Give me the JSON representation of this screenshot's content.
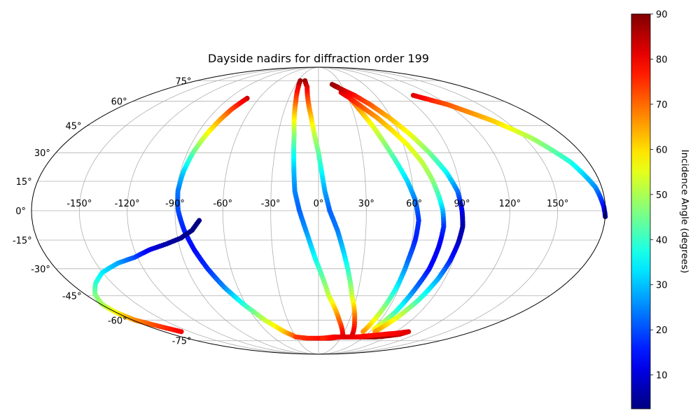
{
  "chart_data": {
    "type": "scatter",
    "projection": "mollweide",
    "title": "Dayside nadirs for diffraction order 199",
    "xlabel": "",
    "ylabel": "",
    "x_tick_labels": [
      "-150°",
      "-120°",
      "-90°",
      "-60°",
      "-30°",
      "0°",
      "30°",
      "60°",
      "90°",
      "120°",
      "150°"
    ],
    "x_ticks": [
      -150,
      -120,
      -90,
      -60,
      -30,
      0,
      30,
      60,
      90,
      120,
      150
    ],
    "y_tick_labels": [
      "-75°",
      "-60°",
      "-45°",
      "-30°",
      "-15°",
      "0°",
      "15°",
      "30°",
      "45°",
      "60°",
      "75°"
    ],
    "y_ticks": [
      -75,
      -60,
      -45,
      -30,
      -15,
      0,
      15,
      30,
      45,
      60,
      75
    ],
    "xlim": [
      -180,
      180
    ],
    "ylim": [
      -90,
      90
    ],
    "grid": true,
    "colorbar": {
      "label": "Incidence Angle (degrees)",
      "colormap": "jet",
      "range": [
        2.5,
        90
      ],
      "ticks": [
        10,
        20,
        30,
        40,
        50,
        60,
        70,
        80,
        90
      ],
      "tick_labels": [
        "10",
        "20",
        "30",
        "40",
        "50",
        "60",
        "70",
        "80",
        "90"
      ]
    },
    "series": [
      {
        "x_longitude_deg": [
          -72,
          -77,
          -80,
          -83,
          -86,
          -88,
          -89,
          -88,
          -85,
          -81,
          -76,
          -70,
          -62,
          -52,
          -40,
          -32
        ],
        "y_latitude_deg": [
          62,
          55,
          48,
          40,
          30,
          20,
          10,
          0,
          -10,
          -20,
          -30,
          -40,
          -50,
          -60,
          -68,
          -71
        ],
        "incidence_deg": [
          83,
          74,
          65,
          56,
          44,
          32,
          24,
          20,
          16,
          14,
          17,
          25,
          38,
          52,
          62,
          70
        ]
      },
      {
        "x_longitude_deg": [
          -160,
          -178,
          -180,
          -179,
          -172,
          -162,
          -150,
          -135,
          -122,
          -110,
          -98,
          -88,
          -80,
          -75
        ],
        "y_latitude_deg": [
          -68,
          -60,
          -55,
          -50,
          -44,
          -38,
          -32,
          -27,
          -24,
          -20,
          -17,
          -14,
          -10,
          -5
        ],
        "incidence_deg": [
          80,
          68,
          58,
          50,
          46,
          40,
          34,
          28,
          20,
          12,
          6,
          4,
          3,
          3
        ]
      },
      {
        "x_longitude_deg": [
          -27,
          -25,
          -22,
          -20,
          -18,
          -17,
          -16,
          -15,
          -12,
          -8,
          -2,
          8,
          20,
          30
        ],
        "y_latitude_deg": [
          75,
          70,
          60,
          50,
          40,
          30,
          20,
          10,
          0,
          -10,
          -25,
          -45,
          -60,
          -70
        ],
        "incidence_deg": [
          88,
          82,
          72,
          60,
          48,
          38,
          30,
          25,
          22,
          26,
          36,
          52,
          70,
          80
        ]
      },
      {
        "x_longitude_deg": [
          -20,
          -14,
          -10,
          -6,
          -3,
          0,
          2,
          4,
          7,
          12,
          18,
          26,
          35,
          42
        ],
        "y_latitude_deg": [
          75,
          70,
          60,
          50,
          40,
          30,
          20,
          10,
          0,
          -10,
          -25,
          -45,
          -60,
          -70
        ],
        "incidence_deg": [
          88,
          82,
          72,
          62,
          52,
          44,
          36,
          28,
          22,
          24,
          34,
          52,
          72,
          82
        ]
      },
      {
        "x_longitude_deg": [
          18,
          24,
          30,
          36,
          42,
          47,
          52,
          57,
          61,
          63,
          62,
          60,
          58,
          55,
          52
        ],
        "y_latitude_deg": [
          72,
          70,
          65,
          55,
          45,
          35,
          25,
          15,
          5,
          -5,
          -15,
          -25,
          -40,
          -55,
          -68
        ],
        "incidence_deg": [
          88,
          84,
          76,
          66,
          56,
          48,
          40,
          32,
          24,
          18,
          16,
          22,
          34,
          50,
          66
        ]
      },
      {
        "x_longitude_deg": [
          25,
          32,
          40,
          48,
          56,
          63,
          69,
          73,
          76,
          78,
          79,
          78,
          76,
          72,
          68,
          62
        ],
        "y_latitude_deg": [
          66,
          62,
          56,
          50,
          42,
          34,
          25,
          16,
          7,
          0,
          -8,
          -18,
          -30,
          -42,
          -55,
          -66
        ],
        "incidence_deg": [
          82,
          78,
          72,
          66,
          60,
          56,
          52,
          48,
          40,
          30,
          18,
          12,
          14,
          24,
          40,
          58
        ]
      },
      {
        "x_longitude_deg": [
          20,
          28,
          38,
          48,
          58,
          68,
          76,
          83,
          88,
          90,
          91,
          90,
          88,
          85,
          80,
          74,
          66
        ],
        "y_latitude_deg": [
          71,
          68,
          64,
          58,
          50,
          40,
          30,
          20,
          10,
          0,
          -8,
          -16,
          -26,
          -36,
          -48,
          -58,
          -68
        ],
        "incidence_deg": [
          88,
          84,
          78,
          72,
          64,
          56,
          46,
          36,
          24,
          12,
          6,
          8,
          16,
          28,
          40,
          54,
          66
        ]
      },
      {
        "x_longitude_deg": [
          100,
          120,
          140,
          155,
          168,
          176,
          179,
          180
        ],
        "y_latitude_deg": [
          64,
          58,
          48,
          38,
          25,
          12,
          2,
          -3
        ],
        "incidence_deg": [
          82,
          72,
          62,
          50,
          38,
          26,
          14,
          4
        ]
      },
      {
        "x_longitude_deg": [
          -30,
          -15,
          0,
          15,
          30,
          45,
          60,
          75,
          90,
          100,
          105,
          95,
          80,
          65,
          50,
          35,
          20,
          5
        ],
        "y_latitude_deg": [
          -72,
          -73,
          -73,
          -73,
          -72,
          -72,
          -72,
          -72,
          -71,
          -70,
          -68,
          -69,
          -70,
          -71,
          -72,
          -72,
          -72,
          -73
        ],
        "incidence_deg": [
          74,
          76,
          78,
          80,
          82,
          84,
          86,
          88,
          86,
          84,
          82,
          80,
          78,
          78,
          80,
          82,
          80,
          76
        ]
      }
    ]
  }
}
